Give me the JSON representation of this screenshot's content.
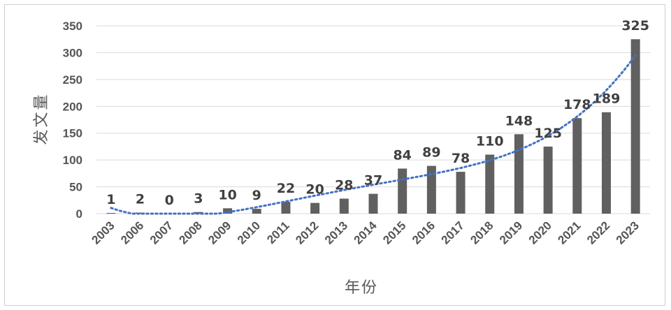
{
  "chart_data": {
    "type": "bar",
    "title": "",
    "xlabel": "年份",
    "ylabel": "发文量",
    "categories": [
      "2003",
      "2006",
      "2007",
      "2008",
      "2009",
      "2010",
      "2011",
      "2012",
      "2013",
      "2014",
      "2015",
      "2016",
      "2017",
      "2018",
      "2019",
      "2020",
      "2021",
      "2022",
      "2023"
    ],
    "values": [
      1,
      2,
      0,
      3,
      10,
      9,
      22,
      20,
      28,
      37,
      84,
      89,
      78,
      110,
      148,
      125,
      178,
      189,
      325
    ],
    "data_labels": [
      "1",
      "2",
      "0",
      "3",
      "10",
      "9",
      "22",
      "20",
      "28",
      "37",
      "84",
      "89",
      "78",
      "110",
      "148",
      "125",
      "178",
      "189",
      "325"
    ],
    "yticks": [
      0,
      50,
      100,
      150,
      200,
      250,
      300,
      350
    ],
    "ylim": [
      0,
      350
    ],
    "grid": true,
    "legend": "none",
    "trendline": "polynomial, dotted",
    "colors": {
      "bar": "#606060",
      "trend": "#4472c4",
      "grid": "#d9d9d9"
    }
  }
}
